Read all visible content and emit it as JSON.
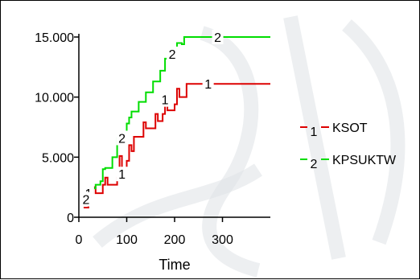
{
  "chart_data": {
    "type": "line",
    "title": "",
    "xlabel": "Time",
    "ylabel": "",
    "xlim": [
      0,
      400
    ],
    "ylim": [
      0,
      15000
    ],
    "x_ticks": [
      0,
      100,
      200,
      300
    ],
    "x_tick_labels": [
      "0",
      "100",
      "200",
      "300"
    ],
    "y_ticks": [
      0,
      5000,
      10000,
      15000
    ],
    "y_tick_labels": [
      "0",
      "5.000",
      "10.000",
      "15.000"
    ],
    "legend_position": "right",
    "grid": false,
    "series": [
      {
        "name": "KSOT",
        "marker_label": "1",
        "color": "#dd0000",
        "step": true,
        "points": [
          [
            10,
            800
          ],
          [
            20,
            2000
          ],
          [
            30,
            2500
          ],
          [
            35,
            2000
          ],
          [
            50,
            2700
          ],
          [
            55,
            3300
          ],
          [
            60,
            2700
          ],
          [
            80,
            3300
          ],
          [
            85,
            5100
          ],
          [
            90,
            3600
          ],
          [
            100,
            4700
          ],
          [
            105,
            6000
          ],
          [
            110,
            5500
          ],
          [
            115,
            6700
          ],
          [
            130,
            6700
          ],
          [
            135,
            7900
          ],
          [
            140,
            7400
          ],
          [
            155,
            7400
          ],
          [
            160,
            8600
          ],
          [
            165,
            8000
          ],
          [
            175,
            8600
          ],
          [
            180,
            9800
          ],
          [
            185,
            8900
          ],
          [
            200,
            9400
          ],
          [
            205,
            10700
          ],
          [
            210,
            10000
          ],
          [
            220,
            10000
          ],
          [
            225,
            11100
          ],
          [
            400,
            11100
          ]
        ],
        "marker_points": [
          [
            20,
            2000
          ],
          [
            90,
            3600
          ],
          [
            180,
            9800
          ],
          [
            270,
            11100
          ]
        ]
      },
      {
        "name": "KPSUKTW",
        "marker_label": "2",
        "color": "#00dd00",
        "step": true,
        "points": [
          [
            10,
            1000
          ],
          [
            15,
            1500
          ],
          [
            25,
            2400
          ],
          [
            30,
            2400
          ],
          [
            35,
            2700
          ],
          [
            45,
            3000
          ],
          [
            50,
            4000
          ],
          [
            55,
            4100
          ],
          [
            65,
            4100
          ],
          [
            70,
            5000
          ],
          [
            80,
            6600
          ],
          [
            85,
            6600
          ],
          [
            90,
            6600
          ],
          [
            100,
            7800
          ],
          [
            105,
            8300
          ],
          [
            110,
            8800
          ],
          [
            125,
            9600
          ],
          [
            140,
            10400
          ],
          [
            155,
            11300
          ],
          [
            170,
            12200
          ],
          [
            180,
            13200
          ],
          [
            195,
            13600
          ],
          [
            205,
            14500
          ],
          [
            215,
            14400
          ],
          [
            220,
            15000
          ],
          [
            400,
            15000
          ]
        ],
        "marker_points": [
          [
            15,
            1500
          ],
          [
            90,
            6600
          ],
          [
            195,
            13600
          ],
          [
            290,
            15000
          ]
        ]
      }
    ]
  }
}
